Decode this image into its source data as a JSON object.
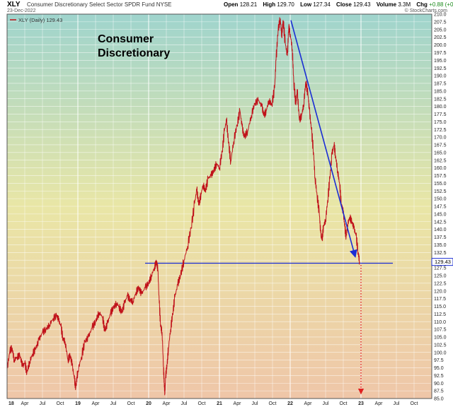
{
  "header": {
    "symbol": "XLY",
    "name": "Consumer Discretionary Select Sector SPDR Fund NYSE",
    "date": "23-Dec-2022",
    "open_label": "Open",
    "open": "128.21",
    "high_label": "High",
    "high": "129.70",
    "low_label": "Low",
    "low": "127.34",
    "close_label": "Close",
    "close": "129.43",
    "volume_label": "Volume",
    "volume": "3.3M",
    "chg_label": "Chg",
    "chg": "+0.88 (+0.68%)",
    "logo": "© StockCharts.com"
  },
  "colors": {
    "price": "#c0121a",
    "trend": "#1a2dd4",
    "target": "#e02020",
    "bg_top": "#9fd4cd",
    "bg_mid": "#e9e6a6",
    "bg_bottom": "#efc6a8"
  },
  "chart_data": {
    "type": "line",
    "legend": "XLY (Daily) 129.43",
    "annotation": "Consumer Discretionary",
    "ylim": [
      85,
      210
    ],
    "y_ticks": [
      85,
      87.5,
      90,
      92.5,
      95,
      97.5,
      100,
      102.5,
      105,
      107.5,
      110,
      112.5,
      115,
      117.5,
      120,
      122.5,
      125,
      127.5,
      130,
      132.5,
      135,
      137.5,
      140,
      142.5,
      145,
      147.5,
      150,
      152.5,
      155,
      157.5,
      160,
      162.5,
      165,
      167.5,
      170,
      172.5,
      175,
      177.5,
      180,
      182.5,
      185,
      187.5,
      190,
      192.5,
      195,
      197.5,
      200,
      202.5,
      205,
      207.5,
      210
    ],
    "last_value": "129.43",
    "x_ticks": [
      {
        "t": 2018.0,
        "label": "18",
        "year": true
      },
      {
        "t": 2018.25,
        "label": "Apr"
      },
      {
        "t": 2018.5,
        "label": "Jul"
      },
      {
        "t": 2018.75,
        "label": "Oct"
      },
      {
        "t": 2019.0,
        "label": "19",
        "year": true
      },
      {
        "t": 2019.25,
        "label": "Apr"
      },
      {
        "t": 2019.5,
        "label": "Jul"
      },
      {
        "t": 2019.75,
        "label": "Oct"
      },
      {
        "t": 2020.0,
        "label": "20",
        "year": true
      },
      {
        "t": 2020.25,
        "label": "Apr"
      },
      {
        "t": 2020.5,
        "label": "Jul"
      },
      {
        "t": 2020.75,
        "label": "Oct"
      },
      {
        "t": 2021.0,
        "label": "21",
        "year": true
      },
      {
        "t": 2021.25,
        "label": "Apr"
      },
      {
        "t": 2021.5,
        "label": "Jul"
      },
      {
        "t": 2021.75,
        "label": "Oct"
      },
      {
        "t": 2022.0,
        "label": "22",
        "year": true
      },
      {
        "t": 2022.25,
        "label": "Apr"
      },
      {
        "t": 2022.5,
        "label": "Jul"
      },
      {
        "t": 2022.75,
        "label": "Oct"
      },
      {
        "t": 2023.0,
        "label": "23",
        "year": true
      },
      {
        "t": 2023.25,
        "label": "Apr"
      },
      {
        "t": 2023.5,
        "label": "Jul"
      },
      {
        "t": 2023.75,
        "label": "Oct"
      }
    ],
    "series": [
      {
        "points": [
          [
            2018.0,
            94.5
          ],
          [
            2018.04,
            100.5
          ],
          [
            2018.07,
            101.5
          ],
          [
            2018.1,
            97.5
          ],
          [
            2018.14,
            98.5
          ],
          [
            2018.18,
            99.0
          ],
          [
            2018.22,
            95.5
          ],
          [
            2018.25,
            96.5
          ],
          [
            2018.28,
            93.5
          ],
          [
            2018.32,
            97.0
          ],
          [
            2018.36,
            99.5
          ],
          [
            2018.4,
            101.0
          ],
          [
            2018.45,
            104.0
          ],
          [
            2018.5,
            106.5
          ],
          [
            2018.55,
            107.5
          ],
          [
            2018.6,
            109.0
          ],
          [
            2018.65,
            111.0
          ],
          [
            2018.7,
            112.0
          ],
          [
            2018.73,
            110.5
          ],
          [
            2018.76,
            108.5
          ],
          [
            2018.79,
            104.5
          ],
          [
            2018.82,
            103.5
          ],
          [
            2018.86,
            97.5
          ],
          [
            2018.89,
            99.0
          ],
          [
            2018.92,
            96.0
          ],
          [
            2018.95,
            91.5
          ],
          [
            2018.97,
            88.5
          ],
          [
            2019.0,
            94.0
          ],
          [
            2019.05,
            98.5
          ],
          [
            2019.1,
            103.5
          ],
          [
            2019.15,
            105.0
          ],
          [
            2019.2,
            108.0
          ],
          [
            2019.25,
            110.0
          ],
          [
            2019.3,
            113.0
          ],
          [
            2019.35,
            111.5
          ],
          [
            2019.38,
            107.0
          ],
          [
            2019.42,
            109.5
          ],
          [
            2019.46,
            112.5
          ],
          [
            2019.5,
            114.5
          ],
          [
            2019.55,
            116.0
          ],
          [
            2019.58,
            115.0
          ],
          [
            2019.62,
            113.0
          ],
          [
            2019.66,
            116.0
          ],
          [
            2019.7,
            118.5
          ],
          [
            2019.74,
            117.0
          ],
          [
            2019.78,
            116.5
          ],
          [
            2019.82,
            119.5
          ],
          [
            2019.86,
            121.0
          ],
          [
            2019.9,
            119.0
          ],
          [
            2019.95,
            121.0
          ],
          [
            2020.0,
            122.5
          ],
          [
            2020.04,
            125.0
          ],
          [
            2020.08,
            127.5
          ],
          [
            2020.11,
            129.5
          ],
          [
            2020.13,
            127.0
          ],
          [
            2020.15,
            116.0
          ],
          [
            2020.17,
            108.5
          ],
          [
            2020.19,
            106.5
          ],
          [
            2020.21,
            95.0
          ],
          [
            2020.22,
            90.0
          ],
          [
            2020.23,
            86.5
          ],
          [
            2020.24,
            92.0
          ],
          [
            2020.26,
            96.0
          ],
          [
            2020.28,
            101.5
          ],
          [
            2020.31,
            107.5
          ],
          [
            2020.34,
            112.5
          ],
          [
            2020.37,
            118.0
          ],
          [
            2020.41,
            122.0
          ],
          [
            2020.45,
            125.0
          ],
          [
            2020.5,
            130.0
          ],
          [
            2020.55,
            134.5
          ],
          [
            2020.6,
            140.5
          ],
          [
            2020.65,
            148.5
          ],
          [
            2020.68,
            153.0
          ],
          [
            2020.71,
            148.0
          ],
          [
            2020.74,
            151.5
          ],
          [
            2020.77,
            154.5
          ],
          [
            2020.8,
            152.5
          ],
          [
            2020.84,
            156.5
          ],
          [
            2020.88,
            157.5
          ],
          [
            2020.92,
            159.0
          ],
          [
            2020.96,
            161.5
          ],
          [
            2021.0,
            160.0
          ],
          [
            2021.04,
            165.5
          ],
          [
            2021.07,
            172.0
          ],
          [
            2021.1,
            175.5
          ],
          [
            2021.13,
            168.0
          ],
          [
            2021.16,
            162.0
          ],
          [
            2021.2,
            168.5
          ],
          [
            2021.25,
            174.0
          ],
          [
            2021.29,
            178.5
          ],
          [
            2021.32,
            173.5
          ],
          [
            2021.35,
            170.0
          ],
          [
            2021.4,
            172.0
          ],
          [
            2021.45,
            177.0
          ],
          [
            2021.5,
            181.0
          ],
          [
            2021.55,
            182.0
          ],
          [
            2021.6,
            180.0
          ],
          [
            2021.63,
            177.0
          ],
          [
            2021.66,
            178.5
          ],
          [
            2021.7,
            182.0
          ],
          [
            2021.74,
            180.5
          ],
          [
            2021.78,
            186.0
          ],
          [
            2021.8,
            195.0
          ],
          [
            2021.83,
            205.0
          ],
          [
            2021.86,
            208.5
          ],
          [
            2021.88,
            203.0
          ],
          [
            2021.9,
            208.0
          ],
          [
            2021.93,
            200.5
          ],
          [
            2021.96,
            196.5
          ],
          [
            2021.98,
            206.0
          ],
          [
            2022.0,
            203.5
          ],
          [
            2022.03,
            198.5
          ],
          [
            2022.05,
            188.0
          ],
          [
            2022.08,
            180.5
          ],
          [
            2022.1,
            185.0
          ],
          [
            2022.13,
            175.5
          ],
          [
            2022.16,
            177.0
          ],
          [
            2022.19,
            180.5
          ],
          [
            2022.22,
            188.0
          ],
          [
            2022.25,
            184.0
          ],
          [
            2022.27,
            179.0
          ],
          [
            2022.3,
            172.5
          ],
          [
            2022.33,
            165.0
          ],
          [
            2022.35,
            157.0
          ],
          [
            2022.38,
            151.0
          ],
          [
            2022.41,
            145.5
          ],
          [
            2022.43,
            139.0
          ],
          [
            2022.45,
            136.5
          ],
          [
            2022.47,
            141.0
          ],
          [
            2022.5,
            143.0
          ],
          [
            2022.53,
            149.5
          ],
          [
            2022.56,
            156.5
          ],
          [
            2022.59,
            164.5
          ],
          [
            2022.62,
            167.5
          ],
          [
            2022.64,
            164.0
          ],
          [
            2022.67,
            159.0
          ],
          [
            2022.7,
            154.5
          ],
          [
            2022.72,
            148.5
          ],
          [
            2022.75,
            145.5
          ],
          [
            2022.77,
            141.0
          ],
          [
            2022.79,
            137.5
          ],
          [
            2022.81,
            141.5
          ],
          [
            2022.84,
            144.0
          ],
          [
            2022.87,
            142.5
          ],
          [
            2022.9,
            140.5
          ],
          [
            2022.93,
            138.0
          ],
          [
            2022.96,
            132.5
          ],
          [
            2022.98,
            129.43
          ]
        ]
      }
    ],
    "support_line": {
      "y": 129.0,
      "x_start": 2019.95,
      "x_end": 2023.45
    },
    "trend_arrow": {
      "from": [
        2022.01,
        208.0
      ],
      "to": [
        2022.92,
        131.0
      ]
    },
    "target_arrow": {
      "x": 2023.0,
      "from": 128.5,
      "to": 86.5
    }
  }
}
